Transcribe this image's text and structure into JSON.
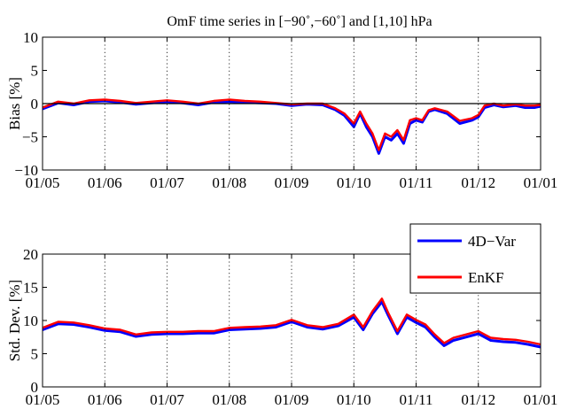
{
  "chart_data": [
    {
      "type": "line",
      "title": "OmF time series in [−90˚,−60˚] and [1,10] hPa",
      "xlabel": "",
      "ylabel": "Bias [%]",
      "ylim": [
        -10,
        10
      ],
      "yticks": [
        -10,
        -5,
        0,
        5,
        10
      ],
      "ytick_labels": [
        "−10",
        "−5",
        "0",
        "5",
        "10"
      ],
      "x_tick_labels": [
        "01/05",
        "01/06",
        "01/07",
        "01/08",
        "01/09",
        "01/10",
        "01/11",
        "01/12",
        "01/01"
      ],
      "x_tick_months": [
        0,
        1,
        2,
        3,
        4,
        5,
        6,
        7,
        8
      ],
      "grid": "vertical-dotted",
      "zero_line": true,
      "x_month": [
        0,
        0.25,
        0.5,
        0.75,
        1,
        1.25,
        1.5,
        1.75,
        2,
        2.25,
        2.5,
        2.75,
        3,
        3.25,
        3.5,
        3.75,
        4,
        4.25,
        4.5,
        4.7,
        4.85,
        5,
        5.1,
        5.2,
        5.3,
        5.4,
        5.5,
        5.6,
        5.7,
        5.8,
        5.9,
        6,
        6.1,
        6.2,
        6.3,
        6.5,
        6.7,
        6.9,
        7,
        7.1,
        7.25,
        7.4,
        7.5,
        7.6,
        7.75,
        7.9,
        8
      ],
      "series": [
        {
          "name": "4D−Var",
          "color": "#0000ff",
          "values": [
            -0.8,
            0.1,
            -0.2,
            0.3,
            0.4,
            0.2,
            -0.1,
            0.1,
            0.3,
            0.1,
            -0.2,
            0.2,
            0.3,
            0.2,
            0.1,
            0.0,
            -0.3,
            -0.1,
            -0.2,
            -0.9,
            -1.8,
            -3.5,
            -1.5,
            -3.5,
            -5.0,
            -7.5,
            -5.0,
            -5.5,
            -4.5,
            -6.0,
            -3.0,
            -2.5,
            -2.8,
            -1.2,
            -0.9,
            -1.5,
            -3.0,
            -2.5,
            -2.0,
            -0.6,
            -0.2,
            -0.5,
            -0.4,
            -0.3,
            -0.6,
            -0.6,
            -0.4
          ]
        },
        {
          "name": "EnKF",
          "color": "#ff0000",
          "values": [
            -0.6,
            0.3,
            0.0,
            0.5,
            0.6,
            0.4,
            0.1,
            0.3,
            0.5,
            0.3,
            0.0,
            0.4,
            0.6,
            0.4,
            0.3,
            0.1,
            -0.1,
            0.0,
            0.0,
            -0.7,
            -1.5,
            -3.0,
            -1.2,
            -3.0,
            -4.5,
            -7.0,
            -4.5,
            -5.0,
            -4.0,
            -5.5,
            -2.5,
            -2.2,
            -2.5,
            -1.0,
            -0.7,
            -1.2,
            -2.6,
            -2.2,
            -1.7,
            -0.3,
            0.0,
            -0.3,
            -0.2,
            -0.1,
            -0.3,
            -0.3,
            -0.2
          ]
        }
      ]
    },
    {
      "type": "line",
      "title": "",
      "xlabel": "",
      "ylabel": "Std. Dev. [%]",
      "ylim": [
        0,
        20
      ],
      "yticks": [
        0,
        5,
        10,
        15,
        20
      ],
      "ytick_labels": [
        "0",
        "5",
        "10",
        "15",
        "20"
      ],
      "x_tick_labels": [
        "01/05",
        "01/06",
        "01/07",
        "01/08",
        "01/09",
        "01/10",
        "01/11",
        "01/12",
        "01/01"
      ],
      "x_tick_months": [
        0,
        1,
        2,
        3,
        4,
        5,
        6,
        7,
        8
      ],
      "grid": "vertical-dotted",
      "zero_line": false,
      "legend_position": "top-right",
      "x_month": [
        0,
        0.25,
        0.5,
        0.75,
        1,
        1.25,
        1.5,
        1.75,
        2,
        2.25,
        2.5,
        2.75,
        3,
        3.25,
        3.5,
        3.75,
        4,
        4.25,
        4.5,
        4.75,
        5,
        5.15,
        5.3,
        5.45,
        5.55,
        5.7,
        5.85,
        6,
        6.15,
        6.3,
        6.45,
        6.6,
        6.8,
        7,
        7.2,
        7.4,
        7.6,
        7.8,
        8
      ],
      "series": [
        {
          "name": "4D−Var",
          "color": "#0000ff",
          "values": [
            8.6,
            9.5,
            9.4,
            9.0,
            8.5,
            8.3,
            7.6,
            7.9,
            8.0,
            8.0,
            8.1,
            8.1,
            8.6,
            8.7,
            8.8,
            9.0,
            9.8,
            9.0,
            8.7,
            9.2,
            10.5,
            8.6,
            11.0,
            12.8,
            10.8,
            8.0,
            10.5,
            9.7,
            9.0,
            7.5,
            6.2,
            7.0,
            7.5,
            8.0,
            7.0,
            6.8,
            6.7,
            6.4,
            6.0
          ]
        },
        {
          "name": "EnKF",
          "color": "#ff0000",
          "values": [
            8.9,
            9.8,
            9.7,
            9.3,
            8.8,
            8.6,
            7.9,
            8.2,
            8.3,
            8.3,
            8.4,
            8.4,
            8.9,
            9.0,
            9.1,
            9.3,
            10.1,
            9.3,
            9.0,
            9.5,
            10.9,
            9.0,
            11.4,
            13.3,
            11.2,
            8.4,
            10.9,
            10.1,
            9.4,
            7.9,
            6.6,
            7.4,
            7.9,
            8.4,
            7.4,
            7.2,
            7.1,
            6.8,
            6.4
          ]
        }
      ]
    }
  ]
}
